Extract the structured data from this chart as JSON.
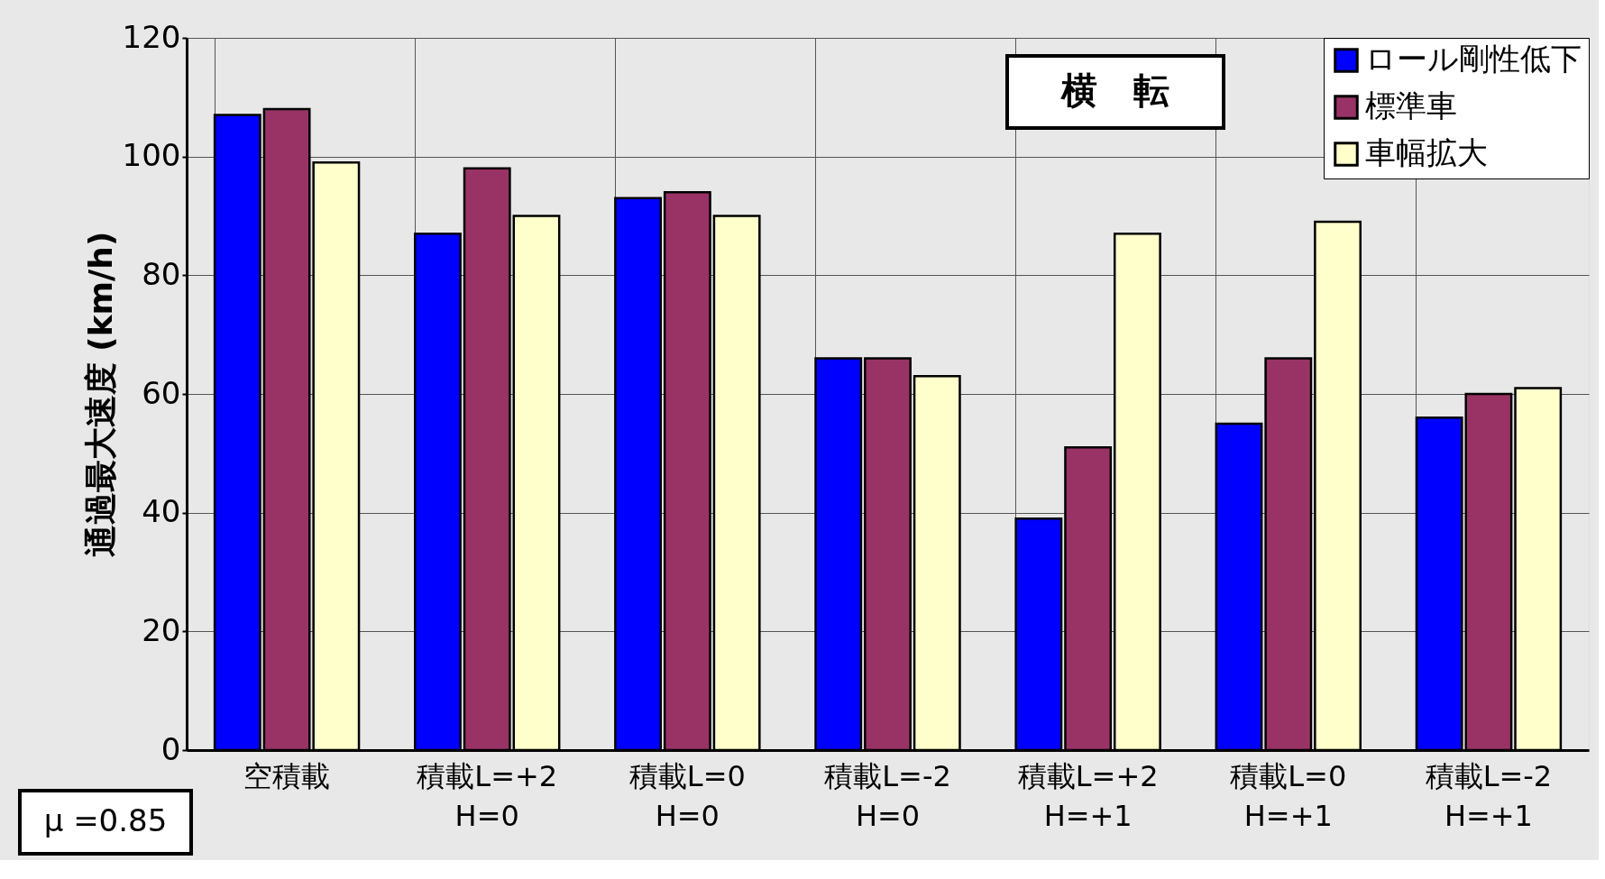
{
  "chart_data": {
    "type": "bar",
    "ylabel": "通過最大速度 (km/h)",
    "categories": [
      "空積載",
      "積載L=+2\nH=0",
      "積載L=0\nH=0",
      "積載L=-2\nH=0",
      "積載L=+2\nH=+1",
      "積載L=0\nH=+1",
      "積載L=-2\nH=+1"
    ],
    "series": [
      {
        "name": "ロール剛性低下",
        "color": "#0000ff",
        "values": [
          107,
          87,
          93,
          66,
          39,
          55,
          56
        ]
      },
      {
        "name": "標準車",
        "color": "#993366",
        "values": [
          108,
          98,
          94,
          66,
          51,
          66,
          60
        ]
      },
      {
        "name": "車幅拡大",
        "color": "#ffffcc",
        "values": [
          99,
          90,
          90,
          63,
          87,
          89,
          61
        ]
      }
    ],
    "ylim": [
      0,
      120
    ],
    "yticks": [
      0,
      20,
      40,
      60,
      80,
      100,
      120
    ],
    "grid": true,
    "legend": "top right",
    "annotations": [
      "横　転",
      "μ =0.85"
    ]
  }
}
